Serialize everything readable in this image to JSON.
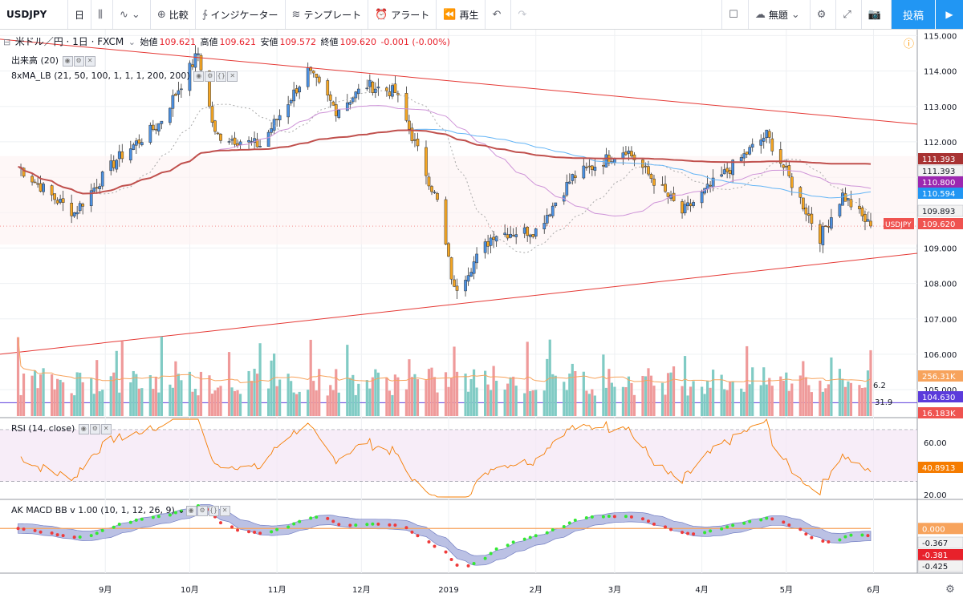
{
  "toolbar": {
    "symbol": "USDJPY",
    "interval": "日",
    "compare": "比較",
    "indicators": "インジケーター",
    "templates": "テンプレート",
    "alert": "アラート",
    "replay": "再生",
    "layout_name": "無題",
    "post": "投稿"
  },
  "legend": {
    "title": "米ドル／円 · 1日 · FXCM",
    "open_label": "始値",
    "open": "109.621",
    "high_label": "高値",
    "high": "109.621",
    "low_label": "安値",
    "low": "109.572",
    "close_label": "終値",
    "close": "109.620",
    "change": "-0.001 (-0.00%)",
    "volume_study": "出来高 (20)",
    "ma_study": "8xMA_LB (21, 50, 100, 1, 1, 1, 200, 200)",
    "rsi_study": "RSI (14, close)",
    "macd_study": "AK MACD BB v 1.00 (10, 1, 12, 26, 9)",
    "vol_values": [
      "6.2",
      "31.9"
    ]
  },
  "chart_data": [
    {
      "type": "candlestick",
      "pane": "price",
      "y_ticks": [
        "115.000",
        "114.000",
        "113.000",
        "112.000",
        "111.000",
        "110.000",
        "109.000",
        "108.000",
        "107.000",
        "106.000",
        "105.000"
      ],
      "ylim": [
        104.3,
        115.1
      ],
      "x_labels": [
        "9月",
        "10月",
        "11月",
        "12月",
        "2019",
        "2月",
        "3月",
        "4月",
        "5月",
        "6月"
      ],
      "symbol_label": "USDJPY",
      "last_price": "109.620",
      "price_labels": [
        {
          "value": "111.393",
          "color": "#a83232"
        },
        {
          "value": "111.393",
          "color": "#f2f2f2"
        },
        {
          "value": "110.800",
          "color": "#9c27b0"
        },
        {
          "value": "110.594",
          "color": "#2196f3"
        },
        {
          "value": "109.893",
          "color": "#f2f2f2"
        },
        {
          "value": "109.620",
          "color": "#ef5350"
        },
        {
          "value": "256.31K",
          "color": "#f7a35c"
        },
        {
          "value": "104.630",
          "color": "#5b3bdb"
        },
        {
          "value": "16.183K",
          "color": "#ef5350"
        }
      ],
      "key_points": [
        {
          "date": "2018-08-01",
          "close": 111.3
        },
        {
          "date": "2018-08-14",
          "close": 110.4
        },
        {
          "date": "2018-08-21",
          "close": 110.0
        },
        {
          "date": "2018-09-05",
          "close": 111.5
        },
        {
          "date": "2018-09-20",
          "close": 112.5
        },
        {
          "date": "2018-10-04",
          "close": 114.5
        },
        {
          "date": "2018-10-10",
          "close": 112.2
        },
        {
          "date": "2018-10-26",
          "close": 111.9
        },
        {
          "date": "2018-11-12",
          "close": 114.0
        },
        {
          "date": "2018-11-22",
          "close": 112.9
        },
        {
          "date": "2018-12-03",
          "close": 113.6
        },
        {
          "date": "2018-12-13",
          "close": 113.4
        },
        {
          "date": "2018-12-28",
          "close": 110.3
        },
        {
          "date": "2019-01-03",
          "close": 107.8
        },
        {
          "date": "2019-01-17",
          "close": 109.4
        },
        {
          "date": "2019-02-01",
          "close": 109.5
        },
        {
          "date": "2019-02-14",
          "close": 111.0
        },
        {
          "date": "2019-03-05",
          "close": 111.8
        },
        {
          "date": "2019-03-25",
          "close": 110.0
        },
        {
          "date": "2019-04-24",
          "close": 112.2
        },
        {
          "date": "2019-05-13",
          "close": 109.3
        },
        {
          "date": "2019-05-21",
          "close": 110.5
        },
        {
          "date": "2019-05-31",
          "close": 109.6
        }
      ],
      "trendlines": [
        "resistance",
        "support"
      ],
      "moving_averages": [
        "21",
        "50",
        "100",
        "200"
      ]
    },
    {
      "type": "bar",
      "pane": "volume",
      "study": "出来高 (20)",
      "last": "16.183K",
      "ma": "256.31K"
    },
    {
      "type": "line",
      "pane": "rsi",
      "y_ticks": [
        "60.00",
        "20.00"
      ],
      "ylim": [
        18,
        78
      ],
      "bands": [
        30,
        70
      ],
      "last": "40.8913"
    },
    {
      "type": "line",
      "pane": "macd",
      "y_ticks": [
        "0.000",
        "-0.367",
        "-0.381",
        "-0.425"
      ],
      "zero_line": "0.000"
    }
  ]
}
